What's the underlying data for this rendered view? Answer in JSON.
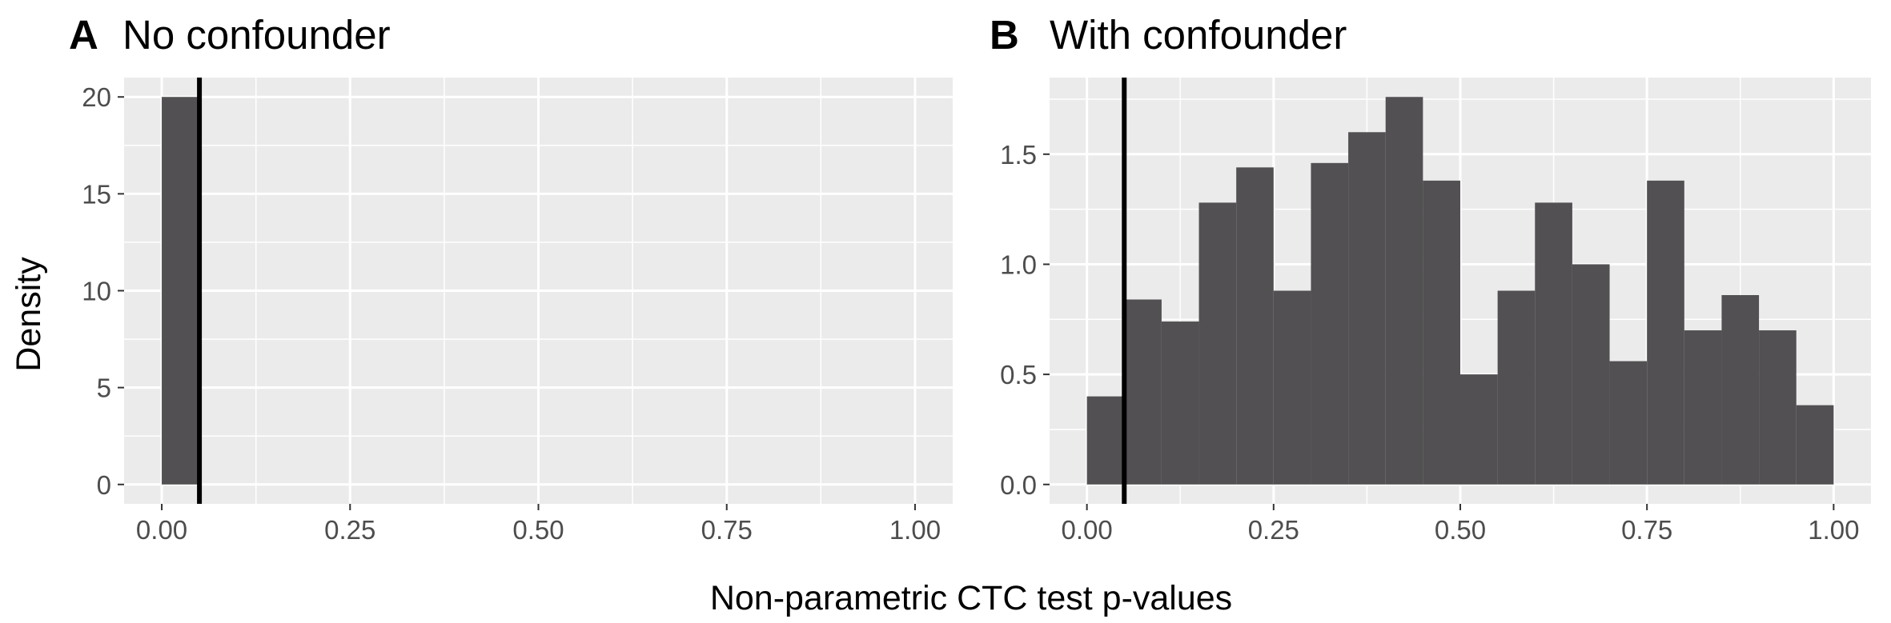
{
  "figure": {
    "xlabel": "Non-parametric CTC test p-values",
    "ylabel": "Density"
  },
  "panels": [
    {
      "tag": "A",
      "title": "No confounder"
    },
    {
      "tag": "B",
      "title": "With confounder"
    }
  ],
  "chart_data": [
    {
      "type": "bar",
      "title": "No confounder",
      "tag": "A",
      "xlabel": "Non-parametric CTC test p-values",
      "ylabel": "Density",
      "xlim": [
        -0.05,
        1.05
      ],
      "ylim": [
        -1.0,
        21.0
      ],
      "x_ticks": [
        0.0,
        0.25,
        0.5,
        0.75,
        1.0
      ],
      "x_tick_labels": [
        "0.00",
        "0.25",
        "0.50",
        "0.75",
        "1.00"
      ],
      "y_ticks": [
        0,
        5,
        10,
        15,
        20
      ],
      "y_tick_labels": [
        "0",
        "5",
        "10",
        "15",
        "20"
      ],
      "bin_width": 0.05,
      "bins": [
        {
          "x0": 0.0,
          "x1": 0.05,
          "density": 20.0
        }
      ],
      "vline_x": 0.05,
      "grid": true
    },
    {
      "type": "bar",
      "title": "With confounder",
      "tag": "B",
      "xlabel": "Non-parametric CTC test p-values",
      "ylabel": "Density",
      "xlim": [
        -0.05,
        1.05
      ],
      "ylim": [
        -0.088,
        1.848
      ],
      "x_ticks": [
        0.0,
        0.25,
        0.5,
        0.75,
        1.0
      ],
      "x_tick_labels": [
        "0.00",
        "0.25",
        "0.50",
        "0.75",
        "1.00"
      ],
      "y_ticks": [
        0.0,
        0.5,
        1.0,
        1.5
      ],
      "y_tick_labels": [
        "0.0",
        "0.5",
        "1.0",
        "1.5"
      ],
      "bin_width": 0.05,
      "bins": [
        {
          "x0": 0.0,
          "x1": 0.05,
          "density": 0.4
        },
        {
          "x0": 0.05,
          "x1": 0.1,
          "density": 0.84
        },
        {
          "x0": 0.1,
          "x1": 0.15,
          "density": 0.74
        },
        {
          "x0": 0.15,
          "x1": 0.2,
          "density": 1.28
        },
        {
          "x0": 0.2,
          "x1": 0.25,
          "density": 1.44
        },
        {
          "x0": 0.25,
          "x1": 0.3,
          "density": 0.88
        },
        {
          "x0": 0.3,
          "x1": 0.35,
          "density": 1.46
        },
        {
          "x0": 0.35,
          "x1": 0.4,
          "density": 1.6
        },
        {
          "x0": 0.4,
          "x1": 0.45,
          "density": 1.76
        },
        {
          "x0": 0.45,
          "x1": 0.5,
          "density": 1.38
        },
        {
          "x0": 0.5,
          "x1": 0.55,
          "density": 0.5
        },
        {
          "x0": 0.55,
          "x1": 0.6,
          "density": 0.88
        },
        {
          "x0": 0.6,
          "x1": 0.65,
          "density": 1.28
        },
        {
          "x0": 0.65,
          "x1": 0.7,
          "density": 1.0
        },
        {
          "x0": 0.7,
          "x1": 0.75,
          "density": 0.56
        },
        {
          "x0": 0.75,
          "x1": 0.8,
          "density": 1.38
        },
        {
          "x0": 0.8,
          "x1": 0.85,
          "density": 0.7
        },
        {
          "x0": 0.85,
          "x1": 0.9,
          "density": 0.86
        },
        {
          "x0": 0.9,
          "x1": 0.95,
          "density": 0.7
        },
        {
          "x0": 0.95,
          "x1": 1.0,
          "density": 0.36
        }
      ],
      "vline_x": 0.05,
      "grid": true
    }
  ]
}
